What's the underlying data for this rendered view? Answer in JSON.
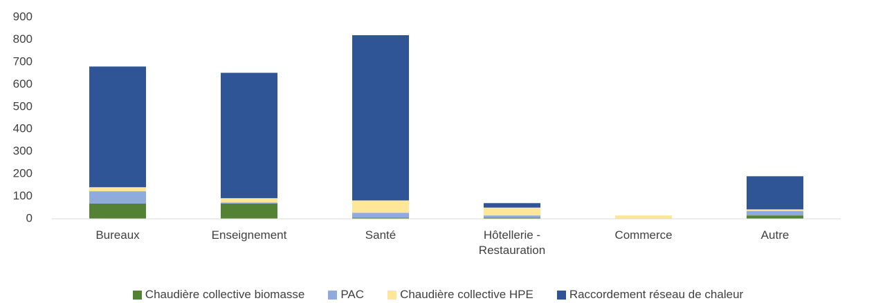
{
  "chart_data": {
    "type": "stacked-bar",
    "categories": [
      "Bureaux",
      "Enseignement",
      "Santé",
      "Hôtellerie - Restauration",
      "Commerce",
      "Autre"
    ],
    "series": [
      {
        "name": "Chaudière collective biomasse",
        "color": "#548235",
        "values": [
          68,
          68,
          5,
          5,
          0,
          15
        ]
      },
      {
        "name": "PAC",
        "color": "#8faadc",
        "values": [
          55,
          5,
          22,
          10,
          0,
          20
        ]
      },
      {
        "name": "Chaudière collective HPE",
        "color": "#ffe699",
        "values": [
          18,
          19,
          55,
          35,
          15,
          7
        ]
      },
      {
        "name": "Raccordement réseau de chaleur",
        "color": "#2f5597",
        "values": [
          539,
          560,
          738,
          20,
          0,
          148
        ]
      }
    ],
    "ylim": [
      0,
      900
    ],
    "yticks": [
      0,
      100,
      200,
      300,
      400,
      500,
      600,
      700,
      800,
      900
    ],
    "grid": false,
    "legend": "bottom"
  }
}
